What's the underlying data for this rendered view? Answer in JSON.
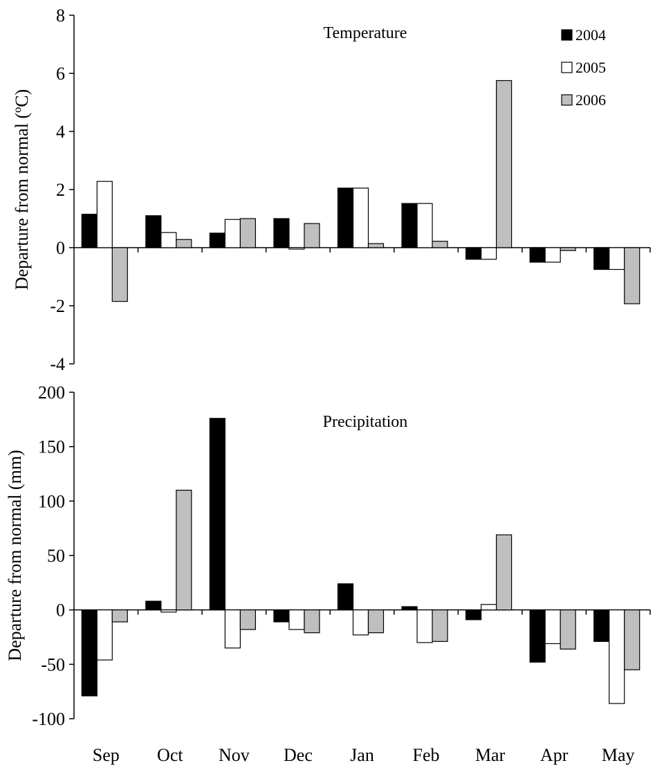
{
  "chart_data": [
    {
      "type": "bar",
      "title": "Temperature",
      "ylabel": "Departure  from normal (ºC)",
      "xlabel": "",
      "ylim": [
        -4,
        8
      ],
      "yticks": [
        8,
        6,
        4,
        2,
        0,
        -2,
        -4
      ],
      "categories": [
        "Sep",
        "Oct",
        "Nov",
        "Dec",
        "Jan",
        "Feb",
        "Mar",
        "Apr",
        "May"
      ],
      "series": [
        {
          "name": "2004",
          "color": "#000000",
          "values": [
            1.15,
            1.1,
            0.5,
            1.0,
            2.05,
            1.52,
            -0.4,
            -0.5,
            -0.75
          ]
        },
        {
          "name": "2005",
          "color": "#ffffff",
          "values": [
            2.28,
            0.52,
            0.97,
            -0.05,
            2.05,
            1.52,
            -0.4,
            -0.5,
            -0.75
          ]
        },
        {
          "name": "2006",
          "color": "#bfbfbf",
          "values": [
            -1.85,
            0.28,
            1.0,
            0.83,
            0.14,
            0.22,
            5.75,
            -0.1,
            -1.93
          ]
        }
      ],
      "legend": "top-right",
      "grid": false
    },
    {
      "type": "bar",
      "title": "Precipitation",
      "ylabel": "Departure  from normal (mm)",
      "xlabel": "",
      "ylim": [
        -100,
        200
      ],
      "yticks": [
        200,
        150,
        100,
        50,
        0,
        -50,
        -100
      ],
      "categories": [
        "Sep",
        "Oct",
        "Nov",
        "Dec",
        "Jan",
        "Feb",
        "Mar",
        "Apr",
        "May"
      ],
      "series": [
        {
          "name": "2004",
          "color": "#000000",
          "values": [
            -79,
            8,
            176,
            -11,
            24,
            3,
            -9,
            -48,
            -29
          ]
        },
        {
          "name": "2005",
          "color": "#ffffff",
          "values": [
            -46,
            -2,
            -35,
            -18,
            -23,
            -30,
            5,
            -31,
            -86
          ]
        },
        {
          "name": "2006",
          "color": "#bfbfbf",
          "values": [
            -11,
            110,
            -18,
            -21,
            -21,
            -29,
            69,
            -36,
            -55
          ]
        }
      ],
      "grid": false
    }
  ]
}
